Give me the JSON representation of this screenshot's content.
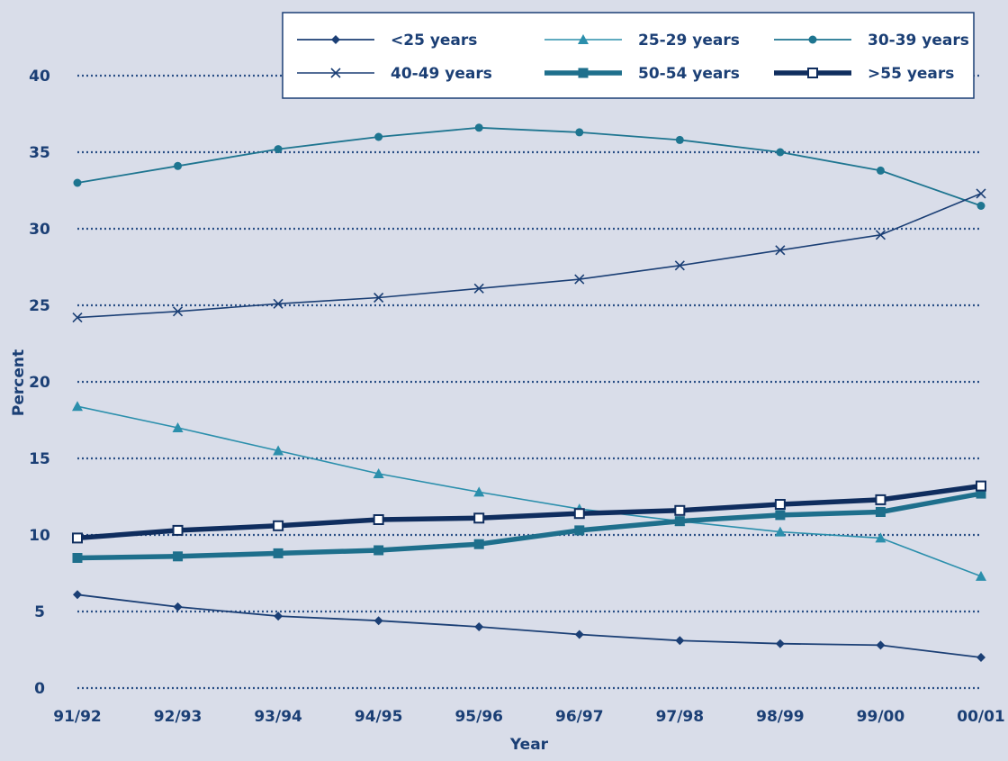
{
  "chart_data": {
    "type": "line",
    "title": "",
    "xlabel": "Year",
    "ylabel": "Percent",
    "ylim": [
      0,
      40
    ],
    "yticks": [
      0,
      5,
      10,
      15,
      20,
      25,
      30,
      35,
      40
    ],
    "grid": "horizontal dotted",
    "legend_position": "top-right",
    "categories": [
      "91/92",
      "92/93",
      "93/94",
      "94/95",
      "95/96",
      "96/97",
      "97/98",
      "98/99",
      "99/00",
      "00/01"
    ],
    "series": [
      {
        "name": "<25 years",
        "marker": "diamond",
        "color": "#1b3f75",
        "values": [
          6.1,
          5.3,
          4.7,
          4.4,
          4.0,
          3.5,
          3.1,
          2.9,
          2.8,
          2.0
        ]
      },
      {
        "name": "25-29 years",
        "marker": "triangle",
        "color": "#2b8fac",
        "values": [
          18.4,
          17.0,
          15.5,
          14.0,
          12.8,
          11.7,
          10.9,
          10.2,
          9.8,
          7.3
        ]
      },
      {
        "name": "30-39 years",
        "marker": "circle",
        "color": "#1e7590",
        "values": [
          33.0,
          34.1,
          35.2,
          36.0,
          36.6,
          36.3,
          35.8,
          35.0,
          33.8,
          31.5
        ]
      },
      {
        "name": "40-49 years",
        "marker": "cross",
        "color": "#1b3f75",
        "values": [
          24.2,
          24.6,
          25.1,
          25.5,
          26.1,
          26.7,
          27.6,
          28.6,
          29.6,
          32.3
        ]
      },
      {
        "name": "50-54 years",
        "marker": "square",
        "color": "#1e6f8c",
        "values": [
          8.5,
          8.6,
          8.8,
          9.0,
          9.4,
          10.3,
          10.9,
          11.3,
          11.5,
          12.7
        ]
      },
      {
        "name": ">55 years",
        "marker": "open-square",
        "color": "#0f2d5e",
        "values": [
          9.8,
          10.3,
          10.6,
          11.0,
          11.1,
          11.4,
          11.6,
          12.0,
          12.3,
          13.2
        ]
      }
    ]
  }
}
